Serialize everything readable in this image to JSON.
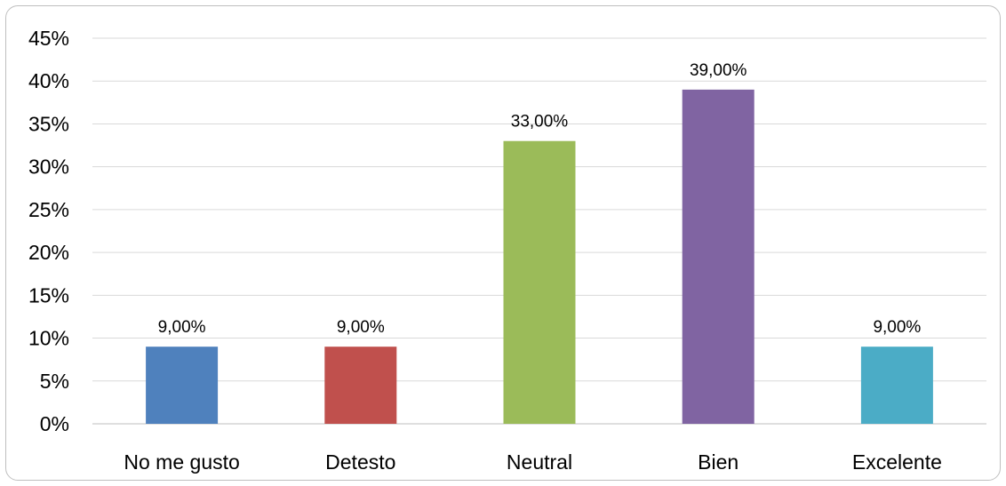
{
  "chart_data": {
    "type": "bar",
    "title": "",
    "xlabel": "",
    "ylabel": "",
    "categories": [
      "No me gusto",
      "Detesto",
      "Neutral",
      "Bien",
      "Excelente"
    ],
    "values": [
      9.0,
      9.0,
      33.0,
      39.0,
      9.0
    ],
    "data_labels": [
      "9,00%",
      "9,00%",
      "33,00%",
      "39,00%",
      "9,00%"
    ],
    "colors": [
      "#4f81bd",
      "#c0504d",
      "#9bbb59",
      "#8064a2",
      "#4bacc6"
    ],
    "ylim": [
      0,
      45
    ],
    "y_ticks": [
      0,
      5,
      10,
      15,
      20,
      25,
      30,
      35,
      40,
      45
    ],
    "y_tick_labels": [
      "0%",
      "5%",
      "10%",
      "15%",
      "20%",
      "25%",
      "30%",
      "35%",
      "40%",
      "45%"
    ],
    "grid": true,
    "legend": "none"
  }
}
